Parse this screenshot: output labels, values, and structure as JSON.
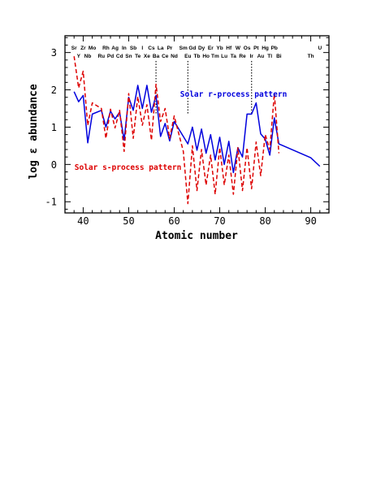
{
  "chart_data": {
    "type": "line",
    "xlabel": "Atomic number",
    "ylabel": "log ε abundance",
    "xlim": [
      36,
      94
    ],
    "ylim": [
      -1.3,
      3.45
    ],
    "xticks": [
      40,
      50,
      60,
      70,
      80,
      90
    ],
    "yticks": [
      -1,
      0,
      1,
      2,
      3
    ],
    "grid": false,
    "element_labels_top": [
      {
        "z": 38,
        "symbol": "Sr"
      },
      {
        "z": 40,
        "symbol": "Zr"
      },
      {
        "z": 42,
        "symbol": "Mo"
      },
      {
        "z": 45,
        "symbol": "Rh"
      },
      {
        "z": 47,
        "symbol": "Ag"
      },
      {
        "z": 49,
        "symbol": "In"
      },
      {
        "z": 51,
        "symbol": "Sb"
      },
      {
        "z": 53,
        "symbol": "I"
      },
      {
        "z": 55,
        "symbol": "Cs"
      },
      {
        "z": 57,
        "symbol": "La"
      },
      {
        "z": 59,
        "symbol": "Pr"
      },
      {
        "z": 62,
        "symbol": "Sm"
      },
      {
        "z": 64,
        "symbol": "Gd"
      },
      {
        "z": 66,
        "symbol": "Dy"
      },
      {
        "z": 68,
        "symbol": "Er"
      },
      {
        "z": 70,
        "symbol": "Yb"
      },
      {
        "z": 72,
        "symbol": "Hf"
      },
      {
        "z": 74,
        "symbol": "W"
      },
      {
        "z": 76,
        "symbol": "Os"
      },
      {
        "z": 78,
        "symbol": "Pt"
      },
      {
        "z": 80,
        "symbol": "Hg"
      },
      {
        "z": 82,
        "symbol": "Pb"
      },
      {
        "z": 92,
        "symbol": "U"
      }
    ],
    "element_labels_bottom": [
      {
        "z": 39,
        "symbol": "Y"
      },
      {
        "z": 41,
        "symbol": "Nb"
      },
      {
        "z": 44,
        "symbol": "Ru"
      },
      {
        "z": 46,
        "symbol": "Pd"
      },
      {
        "z": 48,
        "symbol": "Cd"
      },
      {
        "z": 50,
        "symbol": "Sn"
      },
      {
        "z": 52,
        "symbol": "Te"
      },
      {
        "z": 54,
        "symbol": "Xe"
      },
      {
        "z": 56,
        "symbol": "Ba"
      },
      {
        "z": 58,
        "symbol": "Ce"
      },
      {
        "z": 60,
        "symbol": "Nd"
      },
      {
        "z": 63,
        "symbol": "Eu"
      },
      {
        "z": 65,
        "symbol": "Tb"
      },
      {
        "z": 67,
        "symbol": "Ho"
      },
      {
        "z": 69,
        "symbol": "Tm"
      },
      {
        "z": 71,
        "symbol": "Lu"
      },
      {
        "z": 73,
        "symbol": "Ta"
      },
      {
        "z": 75,
        "symbol": "Re"
      },
      {
        "z": 77,
        "symbol": "Ir"
      },
      {
        "z": 79,
        "symbol": "Au"
      },
      {
        "z": 81,
        "symbol": "Tl"
      },
      {
        "z": 83,
        "symbol": "Bi"
      },
      {
        "z": 90,
        "symbol": "Th"
      }
    ],
    "marker_lines_z": [
      56,
      63,
      77
    ],
    "annotations": [
      {
        "text": "Solar r-process pattern",
        "x": 61.3,
        "y": 1.82,
        "color": "#0000dd"
      },
      {
        "text": "Solar s-process pattern",
        "x": 38.1,
        "y": -0.15,
        "color": "#dd0000"
      }
    ],
    "series": [
      {
        "name": "Solar r-process pattern",
        "color": "#0000dd",
        "style": "solid",
        "x": [
          38,
          39,
          40,
          41,
          42,
          44,
          45,
          46,
          47,
          48,
          49,
          50,
          51,
          52,
          53,
          54,
          55,
          56,
          57,
          58,
          59,
          60,
          62,
          63,
          64,
          65,
          66,
          67,
          68,
          69,
          70,
          71,
          72,
          73,
          74,
          75,
          76,
          77,
          78,
          79,
          80,
          81,
          82,
          83,
          90,
          92
        ],
        "y": [
          1.95,
          1.68,
          1.85,
          0.58,
          1.35,
          1.45,
          1.0,
          1.43,
          1.22,
          1.4,
          0.65,
          1.8,
          1.45,
          2.12,
          1.5,
          2.12,
          1.4,
          1.85,
          0.75,
          1.1,
          0.63,
          1.15,
          0.75,
          0.55,
          1.0,
          0.38,
          0.95,
          0.3,
          0.8,
          0.12,
          0.73,
          0.0,
          0.62,
          -0.22,
          0.45,
          0.2,
          1.35,
          1.35,
          1.65,
          0.82,
          0.68,
          0.25,
          1.25,
          0.55,
          0.18,
          -0.05
        ]
      },
      {
        "name": "Solar s-process pattern",
        "color": "#dd0000",
        "style": "dashed",
        "x": [
          38,
          39,
          40,
          41,
          42,
          44,
          45,
          46,
          47,
          48,
          49,
          50,
          51,
          52,
          53,
          54,
          55,
          56,
          57,
          58,
          59,
          60,
          62,
          63,
          64,
          65,
          66,
          67,
          68,
          69,
          70,
          71,
          72,
          73,
          74,
          75,
          76,
          77,
          78,
          79,
          80,
          81,
          82,
          83
        ],
        "y": [
          2.9,
          2.05,
          2.5,
          1.05,
          1.65,
          1.5,
          0.7,
          1.48,
          0.98,
          1.45,
          0.35,
          1.9,
          0.7,
          1.82,
          1.05,
          1.6,
          0.65,
          2.15,
          1.15,
          1.5,
          0.7,
          1.3,
          0.35,
          -1.05,
          0.5,
          -0.7,
          0.4,
          -0.55,
          0.25,
          -0.8,
          0.45,
          -0.55,
          0.25,
          -0.8,
          0.45,
          -0.7,
          0.45,
          -0.65,
          0.6,
          -0.3,
          0.8,
          0.4,
          1.9,
          0.3
        ]
      }
    ]
  }
}
